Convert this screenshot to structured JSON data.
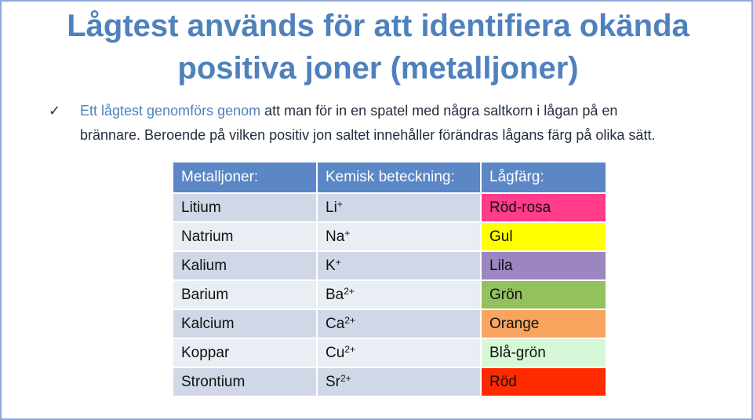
{
  "title": {
    "line1": "Lågtest används för att identifiera okända",
    "line2": "positiva joner (metalljoner)"
  },
  "bullet": {
    "icon": "check-icon",
    "highlight": "Ett lågtest genomförs genom",
    "text_line1": " att man för in en spatel med några saltkorn i lågan på en",
    "text_line2": "brännare. Beroende på vilken positiv jon saltet innehåller förändras lågans färg på olika sätt."
  },
  "table": {
    "headers": [
      "Metalljoner:",
      "Kemisk beteckning:",
      "Lågfärg:"
    ],
    "rows": [
      {
        "metal": "Litium",
        "symbol": "Li",
        "charge": "+",
        "color_name": "Röd-rosa",
        "color": "#ff3b8a"
      },
      {
        "metal": "Natrium",
        "symbol": "Na",
        "charge": "+",
        "color_name": "Gul",
        "color": "#ffff00"
      },
      {
        "metal": "Kalium",
        "symbol": "K",
        "charge": "+",
        "color_name": "Lila",
        "color": "#9b86c0"
      },
      {
        "metal": "Barium",
        "symbol": "Ba",
        "charge": "2+",
        "color_name": "Grön",
        "color": "#92c15e"
      },
      {
        "metal": "Kalcium",
        "symbol": "Ca",
        "charge": "2+",
        "color_name": "Orange",
        "color": "#f9a45f"
      },
      {
        "metal": "Koppar",
        "symbol": "Cu",
        "charge": "2+",
        "color_name": "Blå-grön",
        "color": "#d6f8d6"
      },
      {
        "metal": "Strontium",
        "symbol": "Sr",
        "charge": "2+",
        "color_name": "Röd",
        "color": "#ff2a00"
      }
    ]
  }
}
